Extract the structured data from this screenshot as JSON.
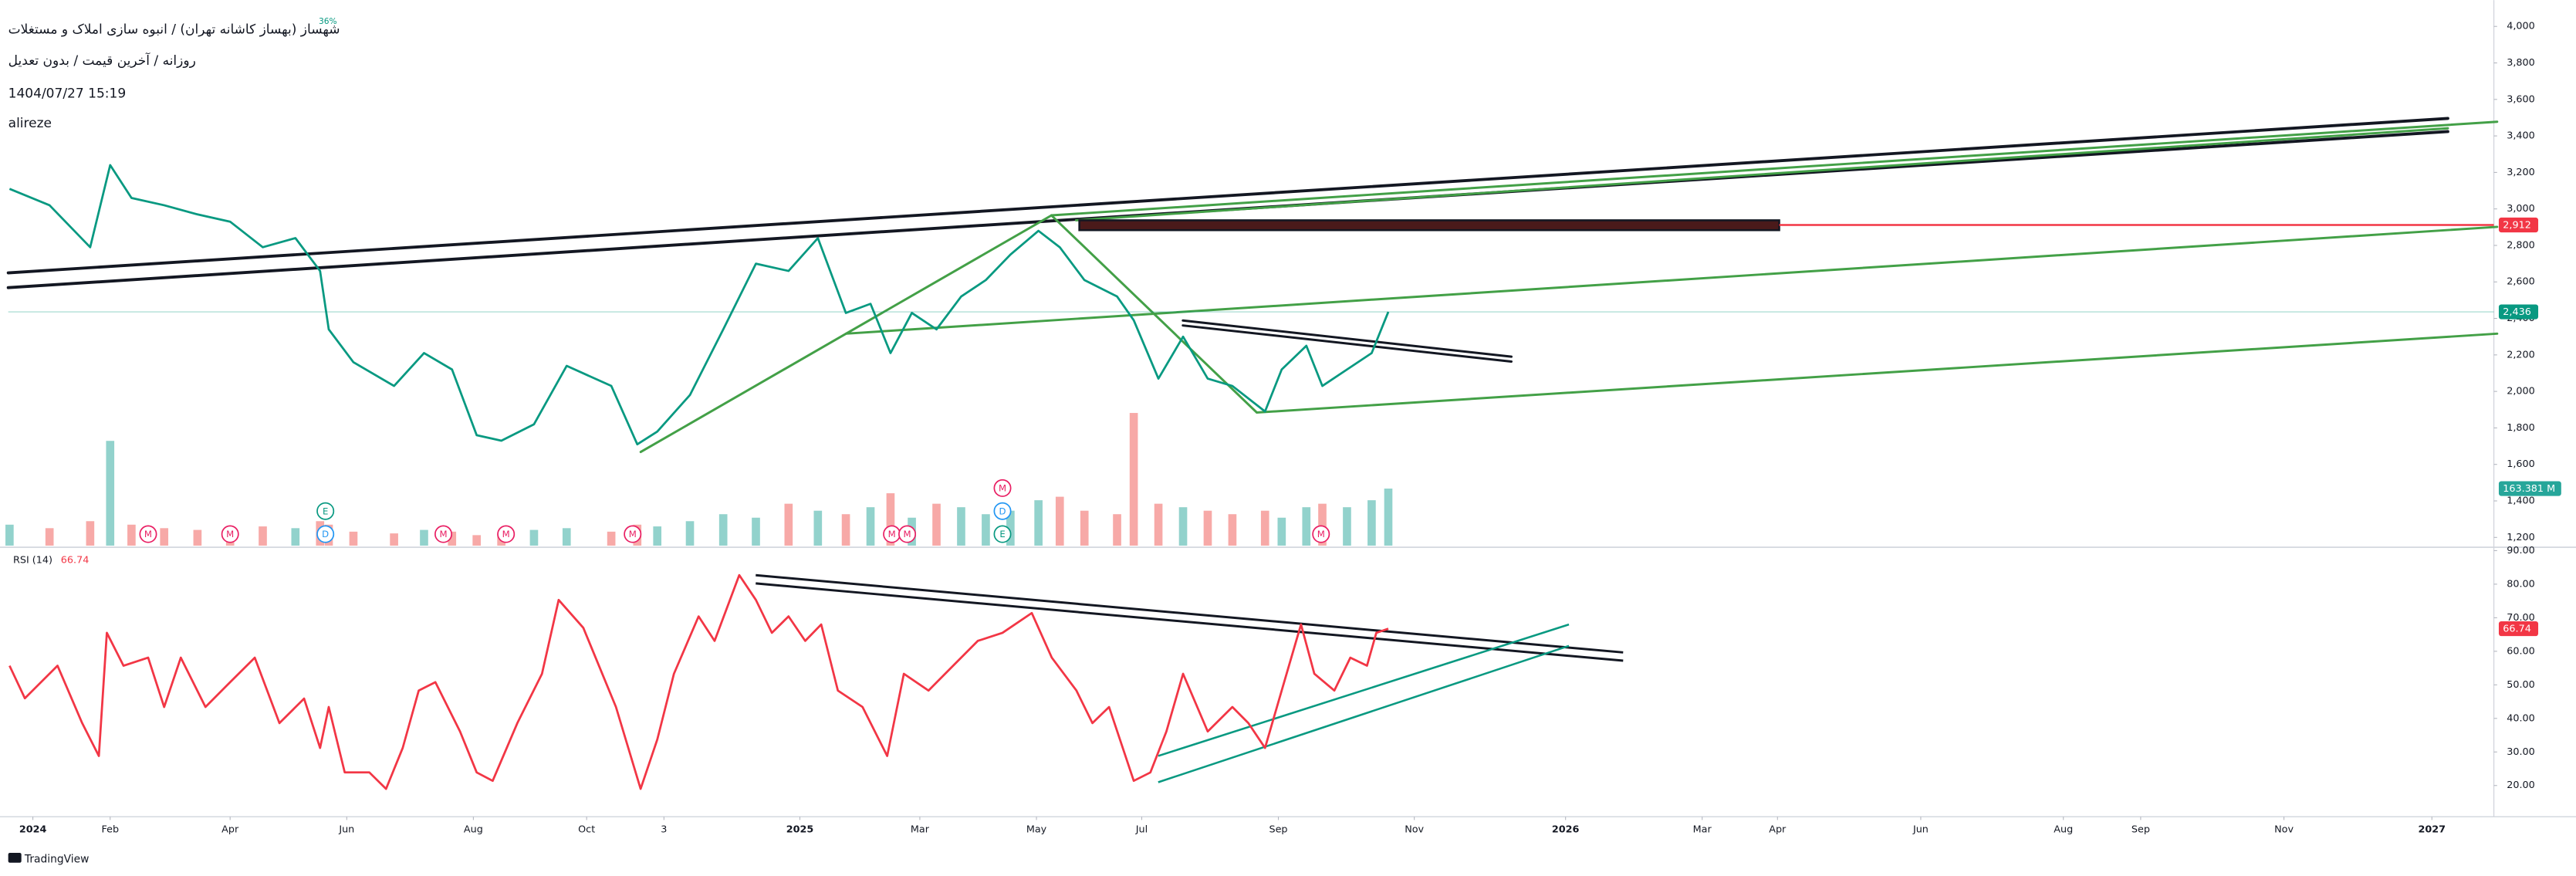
{
  "chart_data": [
    {
      "type": "line",
      "title": "شهساز (بهساز کاشانه تهران) / انبوه سازی املاک و مستغلات",
      "subtitle": "روزانه / آخرین قیمت / بدون تعدیل",
      "timestamp": "1404/07/27 15:19",
      "author": "alireze",
      "change_label": "36%",
      "color": "#089981",
      "grid": false,
      "xlim": [
        -0.37,
        36.93
      ],
      "xticks": [
        {
          "value": 0,
          "label": "2024"
        },
        {
          "value": 1.16,
          "label": "Feb"
        },
        {
          "value": 2.96,
          "label": "Apr"
        },
        {
          "value": 4.71,
          "label": "Jun"
        },
        {
          "value": 6.61,
          "label": "Aug"
        },
        {
          "value": 8.31,
          "label": "Oct"
        },
        {
          "value": 9.47,
          "label": "3"
        },
        {
          "value": 11.51,
          "label": "2025"
        },
        {
          "value": 13.31,
          "label": "Mar"
        },
        {
          "value": 15.06,
          "label": "May"
        },
        {
          "value": 16.64,
          "label": "Jul"
        },
        {
          "value": 18.69,
          "label": "Sep"
        },
        {
          "value": 20.73,
          "label": "Nov"
        },
        {
          "value": 23.0,
          "label": "2026"
        },
        {
          "value": 25.05,
          "label": "Mar"
        },
        {
          "value": 26.18,
          "label": "Apr"
        },
        {
          "value": 28.33,
          "label": "Jun"
        },
        {
          "value": 30.47,
          "label": "Aug"
        },
        {
          "value": 31.63,
          "label": "Sep"
        },
        {
          "value": 33.78,
          "label": "Nov"
        },
        {
          "value": 36.0,
          "label": "2027"
        }
      ],
      "ylim": [
        1155,
        4099
      ],
      "yticks": [
        {
          "value": 1200,
          "label": "1,200"
        },
        {
          "value": 1400,
          "label": "1,400"
        },
        {
          "value": 1600,
          "label": "1,600"
        },
        {
          "value": 1800,
          "label": "1,800"
        },
        {
          "value": 2000,
          "label": "2,000"
        },
        {
          "value": 2200,
          "label": "2,200"
        },
        {
          "value": 2400,
          "label": "2,400"
        },
        {
          "value": 2600,
          "label": "2,600"
        },
        {
          "value": 2800,
          "label": "2,800"
        },
        {
          "value": 3000,
          "label": "3,000"
        },
        {
          "value": 3200,
          "label": "3,200"
        },
        {
          "value": 3400,
          "label": "3,400"
        },
        {
          "value": 3600,
          "label": "3,600"
        },
        {
          "value": 3800,
          "label": "3,800"
        },
        {
          "value": 4000,
          "label": "4,000"
        }
      ],
      "x": [
        -0.35,
        0.25,
        0.86,
        1.16,
        1.48,
        1.97,
        2.47,
        2.96,
        3.45,
        3.94,
        4.31,
        4.44,
        4.81,
        5.42,
        5.87,
        6.29,
        6.66,
        7.03,
        7.52,
        8.01,
        8.68,
        9.07,
        9.37,
        9.86,
        10.36,
        10.85,
        11.34,
        11.78,
        12.2,
        12.57,
        12.87,
        13.19,
        13.56,
        13.93,
        14.3,
        14.67,
        15.09,
        15.41,
        15.78,
        16.27,
        16.52,
        16.89,
        17.26,
        17.63,
        18.0,
        18.49,
        18.74,
        19.11,
        19.35,
        19.72,
        20.09,
        20.34
      ],
      "values": [
        3110,
        3020,
        2790,
        3240,
        3060,
        3020,
        2970,
        2930,
        2790,
        2840,
        2660,
        2340,
        2160,
        2030,
        2210,
        2120,
        1760,
        1730,
        1820,
        2140,
        2030,
        1710,
        1780,
        1980,
        2340,
        2700,
        2660,
        2840,
        2430,
        2480,
        2210,
        2430,
        2340,
        2520,
        2610,
        2750,
        2880,
        2790,
        2610,
        2520,
        2390,
        2070,
        2300,
        2070,
        2030,
        1890,
        2120,
        2250,
        2030,
        2120,
        2210,
        2436
      ],
      "last_label": "2,436",
      "levels": [
        {
          "value": 2912,
          "label": "2,912",
          "color": "#f23645"
        }
      ],
      "volume": {
        "values": [
          60,
          50,
          70,
          300,
          60,
          50,
          45,
          40,
          55,
          50,
          70,
          60,
          40,
          35,
          45,
          40,
          30,
          35,
          45,
          50,
          40,
          60,
          55,
          70,
          90,
          80,
          120,
          100,
          90,
          110,
          150,
          80,
          120,
          110,
          90,
          100,
          130,
          140,
          100,
          90,
          380,
          120,
          110,
          100,
          90,
          100,
          80,
          110,
          120,
          110,
          130,
          163.381
        ],
        "lim": [
          0,
          400
        ],
        "last_label": "163.381 M",
        "up_color": "#26a69a",
        "down_color": "#ef5350"
      },
      "events": [
        {
          "x": 1.73,
          "label": "M"
        },
        {
          "x": 2.96,
          "label": "M"
        },
        {
          "x": 4.39,
          "label": "D"
        },
        {
          "x": 4.39,
          "label": "E"
        },
        {
          "x": 6.16,
          "label": "M"
        },
        {
          "x": 7.1,
          "label": "M"
        },
        {
          "x": 9.0,
          "label": "M"
        },
        {
          "x": 12.89,
          "label": "M"
        },
        {
          "x": 13.12,
          "label": "M"
        },
        {
          "x": 14.55,
          "label": "E"
        },
        {
          "x": 14.55,
          "label": "D"
        },
        {
          "x": 14.55,
          "label": "M"
        },
        {
          "x": 19.33,
          "label": "M"
        }
      ],
      "event_colors": {
        "M": "#e91e63",
        "D": "#2196f3",
        "E": "#089981"
      }
    },
    {
      "type": "line",
      "title": "RSI (14)",
      "color": "#f23645",
      "xlim": [
        -0.37,
        36.93
      ],
      "ylim": [
        10.7,
        91
      ],
      "yticks": [
        {
          "value": 20,
          "label": "20.00"
        },
        {
          "value": 30,
          "label": "30.00"
        },
        {
          "value": 40,
          "label": "40.00"
        },
        {
          "value": 50,
          "label": "50.00"
        },
        {
          "value": 60,
          "label": "60.00"
        },
        {
          "value": 70,
          "label": "70.00"
        },
        {
          "value": 80,
          "label": "80.00"
        },
        {
          "value": 90,
          "label": "90.00"
        }
      ],
      "x": [
        -0.35,
        -0.12,
        0.37,
        0.74,
        0.99,
        1.11,
        1.36,
        1.73,
        1.97,
        2.22,
        2.59,
        2.96,
        3.33,
        3.7,
        4.07,
        4.31,
        4.44,
        4.68,
        5.05,
        5.3,
        5.55,
        5.79,
        6.04,
        6.41,
        6.66,
        6.9,
        7.27,
        7.64,
        7.89,
        8.26,
        8.75,
        9.12,
        9.37,
        9.62,
        9.99,
        10.23,
        10.6,
        10.85,
        11.09,
        11.34,
        11.59,
        11.83,
        12.08,
        12.45,
        12.82,
        13.07,
        13.44,
        13.81,
        14.18,
        14.55,
        14.99,
        15.29,
        15.66,
        15.9,
        16.15,
        16.52,
        16.77,
        17.01,
        17.26,
        17.63,
        18.0,
        18.24,
        18.49,
        18.74,
        19.03,
        19.23,
        19.53,
        19.77,
        20.02,
        20.16,
        20.34
      ],
      "values": [
        55.7,
        46,
        55.7,
        38.6,
        28.8,
        65.5,
        55.7,
        58.1,
        43.4,
        58.1,
        43.4,
        50.8,
        58.1,
        38.6,
        45.9,
        31.2,
        43.4,
        23.9,
        23.9,
        19,
        31.2,
        48.3,
        50.8,
        36.1,
        23.9,
        21.4,
        38.6,
        53.3,
        75.3,
        67,
        43.4,
        19,
        33.7,
        53.3,
        70.4,
        63.1,
        82.7,
        75.3,
        65.5,
        70.4,
        63.1,
        68,
        48.3,
        43.4,
        28.8,
        53.3,
        48.3,
        55.7,
        63.1,
        65.5,
        71.4,
        58.1,
        48.3,
        38.6,
        43.4,
        21.4,
        23.9,
        36.1,
        53.3,
        36.1,
        43.4,
        38.6,
        31.2,
        48.3,
        68,
        53.3,
        48.3,
        58.1,
        55.7,
        65.5,
        66.74
      ]
    }
  ],
  "footer": {
    "brand": "TradingView"
  }
}
